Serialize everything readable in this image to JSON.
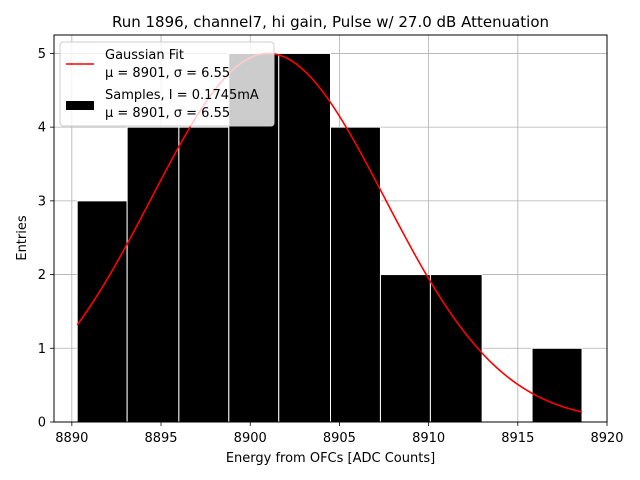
{
  "chart_data": {
    "type": "bar",
    "title": "Run 1896, channel7, hi gain, Pulse w/ 27.0 dB Attenuation",
    "xlabel": "Energy from OFCs [ADC Counts]",
    "ylabel": "Entries",
    "xlim": [
      8889.0,
      8920.0
    ],
    "ylim": [
      0,
      5.25
    ],
    "xticks": [
      8890,
      8895,
      8900,
      8905,
      8910,
      8915,
      8920
    ],
    "yticks": [
      0,
      1,
      2,
      3,
      4,
      5
    ],
    "grid": true,
    "legend_position": "top-left",
    "bin_edges": [
      8890.3,
      8893.1,
      8896.0,
      8898.8,
      8901.6,
      8904.5,
      8907.3,
      8910.1,
      8913.0,
      8915.8,
      8918.6
    ],
    "series": [
      {
        "name": "Samples, I = 0.1745mA",
        "name_line2": "μ = 8901, σ = 6.55",
        "type": "histogram",
        "color": "#000000",
        "edgecolor": "#ffffff",
        "values": [
          3,
          4,
          4,
          5,
          5,
          4,
          2,
          2,
          0,
          1
        ]
      },
      {
        "name": "Gaussian Fit",
        "name_line2": "μ = 8901, σ = 6.55",
        "type": "line",
        "color": "#ff0000",
        "amplitude": 5.0,
        "mu": 8901,
        "sigma": 6.55,
        "x_range": [
          8890.3,
          8918.6
        ]
      }
    ]
  }
}
